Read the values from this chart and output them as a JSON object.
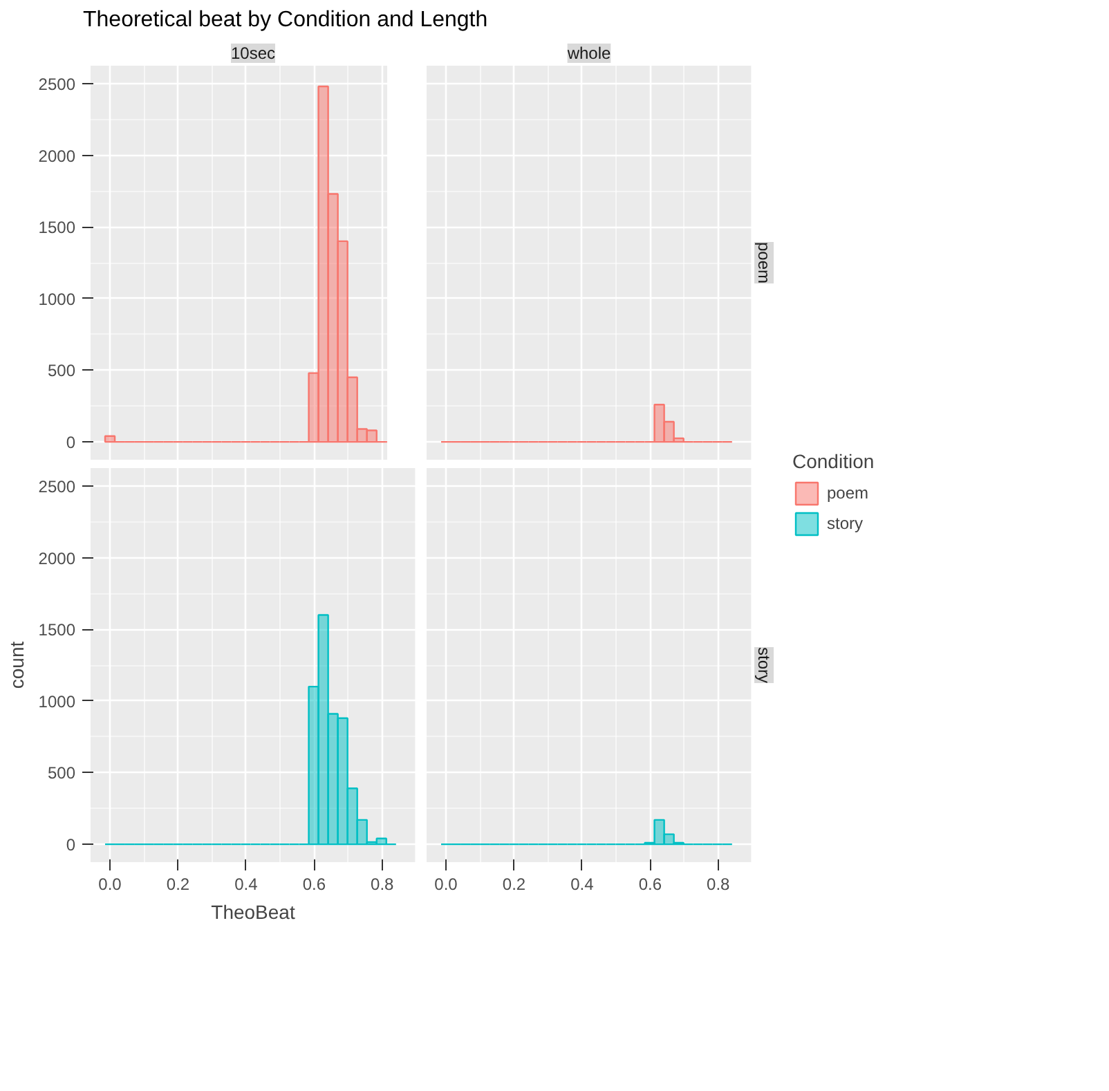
{
  "chart_data": [
    {
      "type": "histogram",
      "title": "Theoretical beat by Condition and Length",
      "subtitle": "10sec",
      "bins": [
        -0.0143,
        0.0142,
        0.0427,
        0.0712,
        0.0997,
        0.1282,
        0.1567,
        0.1852,
        0.2137,
        0.2422,
        0.2707,
        0.2992,
        0.3277,
        0.3562,
        0.3847,
        0.4132,
        0.4417,
        0.4702,
        0.4987,
        0.5272,
        0.5557,
        0.5842,
        0.6127,
        0.6412,
        0.6697,
        0.6982,
        0.7267,
        0.7552,
        0.7837,
        0.8122,
        0.8407
      ],
      "series": [
        {
          "color": "#f8766d",
          "values": [
            40,
            0,
            0,
            0,
            0,
            0,
            0,
            0,
            0,
            0,
            0,
            0,
            0,
            0,
            0,
            0,
            0,
            0,
            0,
            0,
            0,
            480,
            2480,
            1730,
            1400,
            450,
            90,
            80,
            0,
            0
          ]
        }
      ],
      "xlim": [
        -0.057,
        0.898
      ],
      "ylim": [
        -125,
        2625
      ],
      "xticks": [
        0,
        0.2,
        0.4,
        0.6,
        0.8
      ],
      "yticks": [
        0,
        500,
        1000,
        1500,
        2000,
        2500
      ],
      "grid": true,
      "tick_labels": "y"
    },
    {
      "type": "histogram",
      "subtitle": "whole",
      "y2label": "poem",
      "legend_title": "Condition",
      "legend": "right",
      "bins": [
        -0.0143,
        0.0142,
        0.0427,
        0.0712,
        0.0997,
        0.1282,
        0.1567,
        0.1852,
        0.2137,
        0.2422,
        0.2707,
        0.2992,
        0.3277,
        0.3562,
        0.3847,
        0.4132,
        0.4417,
        0.4702,
        0.4987,
        0.5272,
        0.5557,
        0.5842,
        0.6127,
        0.6412,
        0.6697,
        0.6982,
        0.7267,
        0.7552,
        0.7837,
        0.8122,
        0.8407
      ],
      "series": [
        {
          "name": "poem",
          "color": "#f8766d",
          "values": [
            0,
            0,
            0,
            0,
            0,
            0,
            0,
            0,
            0,
            0,
            0,
            0,
            0,
            0,
            0,
            0,
            0,
            0,
            0,
            0,
            0,
            0,
            260,
            140,
            25,
            0,
            0,
            0,
            0,
            0
          ]
        }
      ],
      "xlim": [
        -0.057,
        0.898
      ],
      "ylim": [
        -125,
        2625
      ],
      "xticks": [
        0,
        0.2,
        0.4,
        0.6,
        0.8
      ],
      "yticks": [
        0,
        500,
        1000,
        1500,
        2000,
        2500
      ],
      "grid": true,
      "tick_labels": false
    },
    {
      "type": "histogram",
      "xlabel": "TheoBeat",
      "ylabel": "count",
      "bins": [
        -0.0143,
        0.0142,
        0.0427,
        0.0712,
        0.0997,
        0.1282,
        0.1567,
        0.1852,
        0.2137,
        0.2422,
        0.2707,
        0.2992,
        0.3277,
        0.3562,
        0.3847,
        0.4132,
        0.4417,
        0.4702,
        0.4987,
        0.5272,
        0.5557,
        0.5842,
        0.6127,
        0.6412,
        0.6697,
        0.6982,
        0.7267,
        0.7552,
        0.7837,
        0.8122,
        0.8407
      ],
      "series": [
        {
          "color": "#00bfc4",
          "values": [
            0,
            0,
            0,
            0,
            0,
            0,
            0,
            0,
            0,
            0,
            0,
            0,
            0,
            0,
            0,
            0,
            0,
            0,
            0,
            0,
            0,
            1100,
            1600,
            910,
            880,
            390,
            170,
            15,
            40,
            0
          ]
        }
      ],
      "xlim": [
        -0.057,
        0.898
      ],
      "ylim": [
        -125,
        2625
      ],
      "xticks": [
        {
          "value": 0,
          "label": "0.0"
        },
        0.2,
        0.4,
        0.6,
        0.8
      ],
      "yticks": [
        0,
        500,
        1000,
        1500,
        2000,
        2500
      ],
      "grid": true
    },
    {
      "type": "histogram",
      "y2label": "story",
      "legend": "right",
      "bins": [
        -0.0143,
        0.0142,
        0.0427,
        0.0712,
        0.0997,
        0.1282,
        0.1567,
        0.1852,
        0.2137,
        0.2422,
        0.2707,
        0.2992,
        0.3277,
        0.3562,
        0.3847,
        0.4132,
        0.4417,
        0.4702,
        0.4987,
        0.5272,
        0.5557,
        0.5842,
        0.6127,
        0.6412,
        0.6697,
        0.6982,
        0.7267,
        0.7552,
        0.7837,
        0.8122,
        0.8407
      ],
      "series": [
        {
          "name": "story",
          "color": "#00bfc4",
          "values": [
            0,
            0,
            0,
            0,
            0,
            0,
            0,
            0,
            0,
            0,
            0,
            0,
            0,
            0,
            0,
            0,
            0,
            0,
            0,
            0,
            0,
            10,
            170,
            70,
            10,
            0,
            0,
            0,
            0,
            0
          ]
        }
      ],
      "xlim": [
        -0.057,
        0.898
      ],
      "ylim": [
        -125,
        2625
      ],
      "xticks": [
        {
          "value": 0,
          "label": "0.0"
        },
        0.2,
        0.4,
        0.6,
        0.8
      ],
      "yticks": [
        0,
        500,
        1000,
        1500,
        2000,
        2500
      ],
      "grid": true,
      "tick_labels": "x"
    }
  ]
}
